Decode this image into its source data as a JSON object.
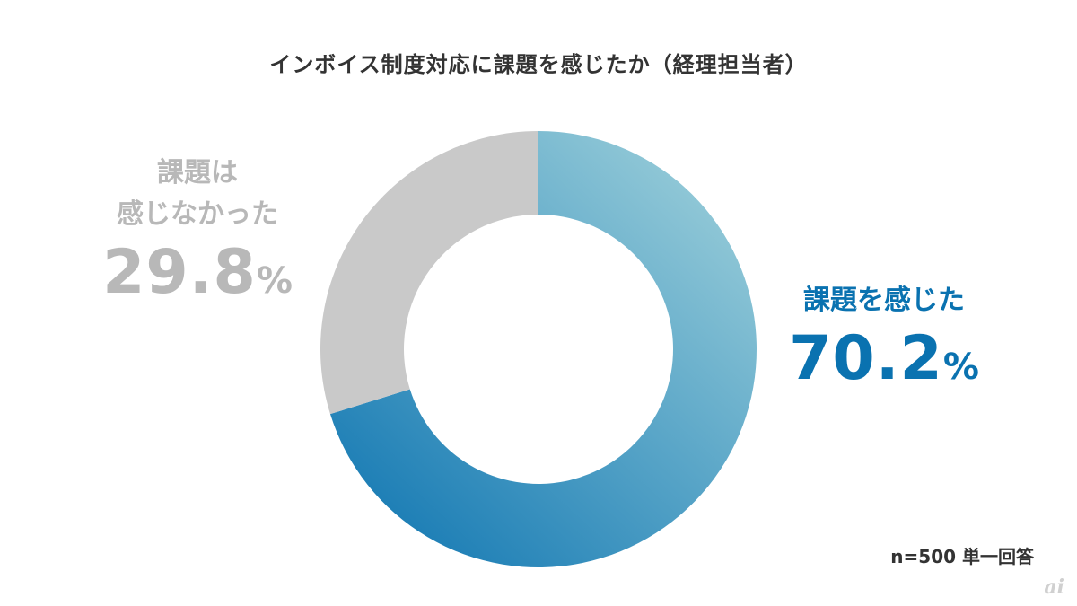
{
  "title": "インボイス制度対応に課題を感じたか（経理担当者）",
  "chart_data": {
    "type": "pie",
    "title": "インボイス制度対応に課題を感じたか（経理担当者）",
    "slices": [
      {
        "label_lines": [
          "課題を感じた"
        ],
        "value": 70.2,
        "value_text": "70.2",
        "unit": "%",
        "color": "#0a72b0",
        "color_start": "#9ed0da"
      },
      {
        "label_lines": [
          "課題は",
          "感じなかった"
        ],
        "value": 29.8,
        "value_text": "29.8",
        "unit": "%",
        "color": "#c9c9c9"
      }
    ],
    "footnote": "n=500 単一回答"
  },
  "logo": "ai"
}
